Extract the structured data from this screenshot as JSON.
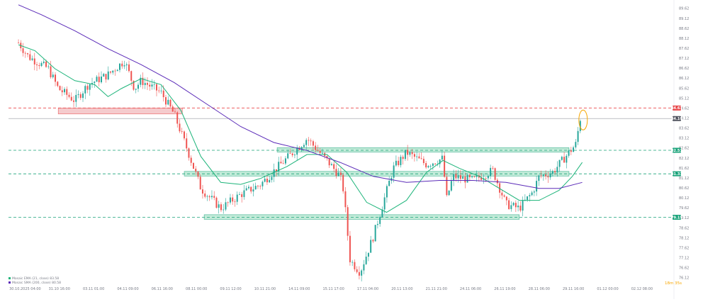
{
  "chart_data": {
    "type": "candlestick",
    "title": "",
    "colors": {
      "up": "#26a69a",
      "down": "#ef5350",
      "ema_fast": "#1db47a",
      "ma_slow": "#5b2bb8",
      "resistance_line": "#e8474a",
      "support_line": "#1aa37a",
      "support_zone": "#b9e8d3",
      "resistance_zone": "#f4c3c5",
      "grid": "#f0f3fa",
      "current_price_line": "#9598a1",
      "highlight_circle": "#f7a600"
    },
    "y_axis": {
      "labels": [
        "89.62",
        "89.12",
        "88.62",
        "88.12",
        "87.62",
        "87.12",
        "86.62",
        "86.12",
        "85.62",
        "85.12",
        "84.62",
        "84.12",
        "83.62",
        "83.12",
        "82.62",
        "82.12",
        "81.62",
        "81.12",
        "80.62",
        "80.12",
        "79.62",
        "79.12",
        "78.62",
        "78.12",
        "77.62",
        "77.12",
        "76.62",
        "76.12"
      ],
      "range": [
        75.9,
        89.9
      ]
    },
    "x_axis": {
      "labels": [
        "30.10.2025 04:00",
        "31.10 16:00",
        "03.11 01:00",
        "04.11 09:00",
        "06.11 16:00",
        "08.11 00:00",
        "09.11 12:00",
        "10.11 21:00",
        "14.11 09:00",
        "15.11 17:00",
        "17.11 04:00",
        "20.11 13:00",
        "21.11 21:00",
        "24.11 06:00",
        "26.11 19:00",
        "28.11 06:00",
        "29.11 16:00",
        "01.12 00:00",
        "02.12 08:00"
      ]
    },
    "price_tags": [
      {
        "label": "84.63",
        "value": 84.63,
        "kind": "resistance"
      },
      {
        "label": "84.10",
        "value": 84.1,
        "kind": "current"
      },
      {
        "label": "82.51",
        "value": 82.51,
        "kind": "support"
      },
      {
        "label": "81.33",
        "value": 81.33,
        "kind": "support"
      },
      {
        "label": "79.15",
        "value": 79.15,
        "kind": "support"
      }
    ],
    "levels": [
      {
        "value": 84.63,
        "kind": "resistance"
      },
      {
        "value": 82.51,
        "kind": "support"
      },
      {
        "value": 81.33,
        "kind": "support"
      },
      {
        "value": 79.15,
        "kind": "support"
      }
    ],
    "zones": [
      {
        "kind": "resistance",
        "from": 84.33,
        "to": 84.63,
        "start": 0.075,
        "end": 0.262
      },
      {
        "kind": "support",
        "from": 82.42,
        "to": 82.64,
        "start": 0.405,
        "end": 0.845
      },
      {
        "kind": "support",
        "from": 81.22,
        "to": 81.45,
        "start": 0.265,
        "end": 0.845
      },
      {
        "kind": "support",
        "from": 79.05,
        "to": 79.28,
        "start": 0.295,
        "end": 0.77
      }
    ],
    "series": [
      {
        "name": "EMA",
        "color": "#1db47a",
        "x": [
          0.015,
          0.04,
          0.07,
          0.1,
          0.13,
          0.15,
          0.17,
          0.2,
          0.23,
          0.26,
          0.29,
          0.32,
          0.35,
          0.38,
          0.42,
          0.45,
          0.48,
          0.51,
          0.54,
          0.57,
          0.6,
          0.63,
          0.655,
          0.68,
          0.71,
          0.74,
          0.77,
          0.8,
          0.83,
          0.85,
          0.865
        ],
        "values": [
          87.8,
          87.5,
          86.6,
          86.0,
          85.8,
          85.2,
          85.6,
          86.1,
          85.8,
          84.5,
          82.2,
          80.9,
          80.8,
          81.1,
          81.7,
          82.3,
          82.3,
          81.4,
          79.9,
          79.4,
          80.0,
          81.4,
          82.0,
          81.6,
          81.2,
          80.6,
          80.0,
          80.0,
          80.5,
          81.2,
          81.9
        ]
      },
      {
        "name": "MA",
        "color": "#5b2bb8",
        "x": [
          0.015,
          0.05,
          0.1,
          0.15,
          0.2,
          0.25,
          0.3,
          0.35,
          0.4,
          0.45,
          0.5,
          0.55,
          0.6,
          0.65,
          0.7,
          0.75,
          0.8,
          0.83,
          0.865
        ],
        "values": [
          89.8,
          89.3,
          88.5,
          87.6,
          86.8,
          85.9,
          84.8,
          83.7,
          82.9,
          82.5,
          81.9,
          81.2,
          80.9,
          81.0,
          81.0,
          80.9,
          80.6,
          80.6,
          80.9
        ]
      }
    ],
    "legend": {
      "lines": [
        "Mosaic EMA (21, close) 83.58",
        "Mosaic SMA (200, close) 80.58"
      ]
    },
    "annotations": {
      "timer": "18m 35s",
      "highlight_circle_value": 84.1
    },
    "grid": false
  }
}
